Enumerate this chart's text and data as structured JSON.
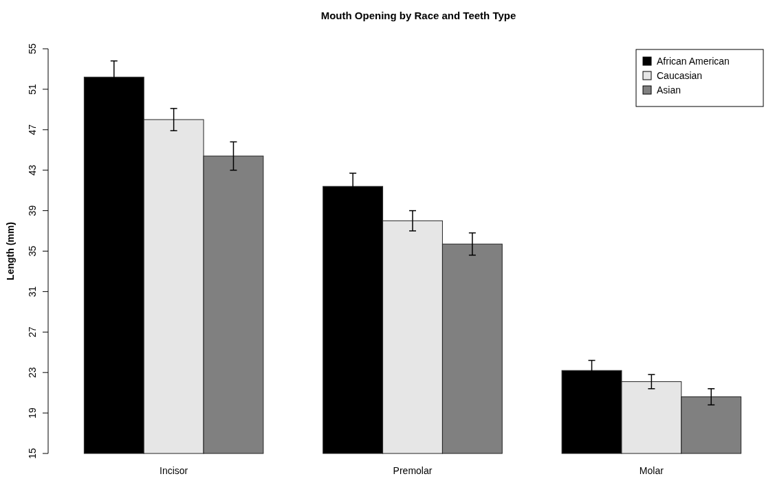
{
  "chart_data": {
    "type": "bar",
    "title": "Mouth Opening by Race and Teeth Type",
    "ylabel": "Length (mm)",
    "categories": [
      "Incisor",
      "Premolar",
      "Molar"
    ],
    "series": [
      {
        "name": "African American",
        "color": "#000000",
        "values": [
          52.2,
          41.4,
          23.2
        ],
        "errors": [
          1.6,
          1.3,
          1.0
        ]
      },
      {
        "name": "Caucasian",
        "color": "#e6e6e6",
        "values": [
          48.0,
          38.0,
          22.1
        ],
        "errors": [
          1.1,
          1.0,
          0.7
        ]
      },
      {
        "name": "Asian",
        "color": "#808080",
        "values": [
          44.4,
          35.7,
          20.6
        ],
        "errors": [
          1.4,
          1.1,
          0.8
        ]
      }
    ],
    "ylim": [
      15,
      55
    ],
    "yticks": [
      15,
      19,
      23,
      27,
      31,
      35,
      39,
      43,
      47,
      51,
      55
    ],
    "grid": false,
    "legend": "top right"
  }
}
